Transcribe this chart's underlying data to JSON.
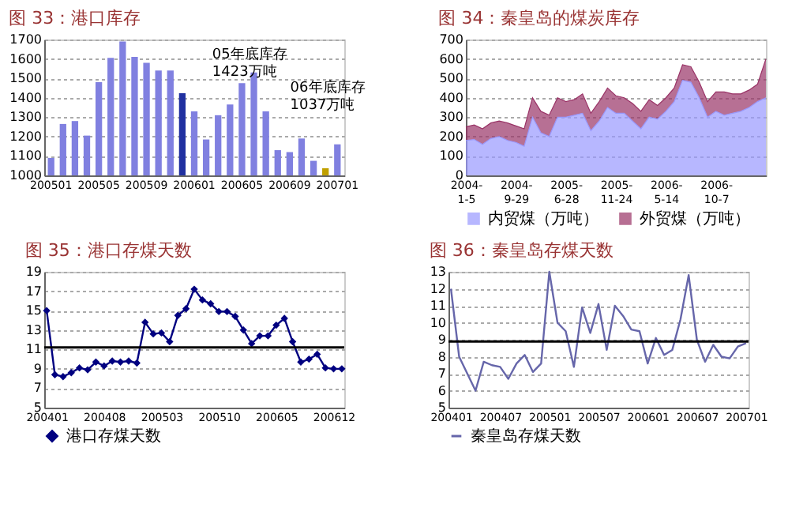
{
  "chart_data": [
    {
      "type": "bar",
      "title": "图 33：港口库存",
      "legend": false,
      "grid": "y",
      "categories": [
        "200501",
        null,
        null,
        null,
        "200505",
        null,
        null,
        null,
        "200509",
        null,
        null,
        null,
        "200601",
        null,
        null,
        null,
        "200605",
        null,
        null,
        null,
        "200609",
        null,
        null,
        null,
        "200701"
      ],
      "values": [
        1090,
        1265,
        1280,
        1205,
        1480,
        1605,
        1690,
        1610,
        1580,
        1540,
        1540,
        1423,
        1330,
        1185,
        1310,
        1365,
        1475,
        1530,
        1330,
        1130,
        1120,
        1190,
        1075,
        1037,
        1160
      ],
      "colors": [
        "#8080e0",
        "#8080e0",
        "#8080e0",
        "#8080e0",
        "#8080e0",
        "#8080e0",
        "#8080e0",
        "#8080e0",
        "#8080e0",
        "#8080e0",
        "#8080e0",
        "#2030a0",
        "#8080e0",
        "#8080e0",
        "#8080e0",
        "#8080e0",
        "#8080e0",
        "#8080e0",
        "#8080e0",
        "#8080e0",
        "#8080e0",
        "#8080e0",
        "#8080e0",
        "#c0a000",
        "#8080e0"
      ],
      "ylim": [
        1000,
        1700
      ],
      "yticks": [
        1000,
        1100,
        1200,
        1300,
        1400,
        1500,
        1600,
        1700
      ],
      "annotations": [
        "05年底库存 1423万吨",
        "06年底库存 1037万吨"
      ]
    },
    {
      "type": "area",
      "title": "图 34：秦皇岛的煤炭库存",
      "stacked": true,
      "legend": "bottom",
      "grid": "y",
      "categories": [
        "2004-1-5",
        null,
        null,
        null,
        null,
        null,
        "2004-9-29",
        null,
        null,
        null,
        null,
        null,
        "2005-6-28",
        null,
        null,
        null,
        null,
        null,
        "2005-11-24",
        null,
        null,
        null,
        null,
        null,
        "2006-5-14",
        null,
        null,
        null,
        null,
        null,
        "2006-10-7",
        null,
        null,
        null,
        null,
        null,
        null
      ],
      "series": [
        {
          "name": "内贸煤（万吨）",
          "color": "#9999ff",
          "values": [
            180,
            185,
            160,
            190,
            200,
            180,
            170,
            150,
            300,
            220,
            200,
            300,
            300,
            310,
            320,
            230,
            280,
            350,
            320,
            320,
            280,
            240,
            300,
            290,
            330,
            380,
            490,
            480,
            400,
            300,
            330,
            310,
            320,
            330,
            350,
            380,
            400
          ]
        },
        {
          "name": "外贸煤（万吨）",
          "color": "#993366",
          "values": [
            70,
            75,
            80,
            80,
            80,
            90,
            85,
            90,
            100,
            110,
            110,
            100,
            80,
            80,
            100,
            90,
            100,
            100,
            90,
            80,
            90,
            90,
            90,
            70,
            70,
            70,
            80,
            80,
            80,
            80,
            100,
            120,
            100,
            90,
            90,
            90,
            200
          ]
        }
      ],
      "ylim": [
        0,
        700
      ],
      "yticks": [
        0,
        100,
        200,
        300,
        400,
        500,
        600,
        700
      ]
    },
    {
      "type": "line",
      "title": "图 35：港口存煤天数",
      "legend": "bottom",
      "grid": "y",
      "marker": "diamond",
      "line_style": "solid",
      "categories": [
        "200401",
        null,
        null,
        null,
        null,
        null,
        null,
        "200408",
        null,
        null,
        null,
        null,
        null,
        null,
        "200503",
        null,
        null,
        null,
        null,
        null,
        null,
        "200510",
        null,
        null,
        null,
        null,
        null,
        null,
        "200605",
        null,
        null,
        null,
        null,
        null,
        null,
        "200612",
        null
      ],
      "series": [
        {
          "name": "港口存煤天数",
          "color": "#000080",
          "values": [
            15,
            8.4,
            8.2,
            8.6,
            9.1,
            8.9,
            9.7,
            9.3,
            9.8,
            9.7,
            9.8,
            9.6,
            13.8,
            12.6,
            12.7,
            11.8,
            14.5,
            15.2,
            17.2,
            16.1,
            15.7,
            14.9,
            14.9,
            14.4,
            13.0,
            11.6,
            12.4,
            12.4,
            13.5,
            14.2,
            11.8,
            9.7,
            10.0,
            10.5,
            9.1,
            9.0,
            9.0
          ]
        }
      ],
      "ref_lines": [
        {
          "axis": "y",
          "value": 11.2,
          "color": "#000000"
        }
      ],
      "ylim": [
        5,
        19
      ],
      "yticks": [
        5,
        7,
        9,
        11,
        13,
        15,
        17,
        19
      ]
    },
    {
      "type": "line",
      "title": "图 36：秦皇岛存煤天数",
      "legend": "bottom",
      "grid": "y",
      "marker": "none",
      "line_style": "solid",
      "categories": [
        "200401",
        null,
        null,
        null,
        null,
        null,
        "200407",
        null,
        null,
        null,
        null,
        null,
        "200501",
        null,
        null,
        null,
        null,
        null,
        "200507",
        null,
        null,
        null,
        null,
        null,
        "200601",
        null,
        null,
        null,
        null,
        null,
        "200607",
        null,
        null,
        null,
        null,
        null,
        "200701"
      ],
      "series": [
        {
          "name": "秦皇岛存煤天数",
          "color": "#6666aa",
          "values": [
            12,
            8.0,
            7.0,
            6.0,
            7.7,
            7.5,
            7.4,
            6.7,
            7.6,
            8.1,
            7.1,
            7.6,
            13.0,
            10.0,
            9.5,
            7.4,
            10.9,
            9.4,
            11.1,
            8.4,
            11.0,
            10.4,
            9.6,
            9.5,
            7.6,
            9.1,
            8.1,
            8.4,
            10.2,
            12.8,
            9.0,
            7.7,
            8.7,
            8.0,
            7.9,
            8.6,
            8.8
          ]
        }
      ],
      "ref_lines": [
        {
          "axis": "y",
          "value": 8.9,
          "color": "#000000"
        }
      ],
      "ylim": [
        5,
        13
      ],
      "yticks": [
        5,
        6,
        7,
        8,
        9,
        10,
        11,
        12,
        13
      ]
    }
  ]
}
